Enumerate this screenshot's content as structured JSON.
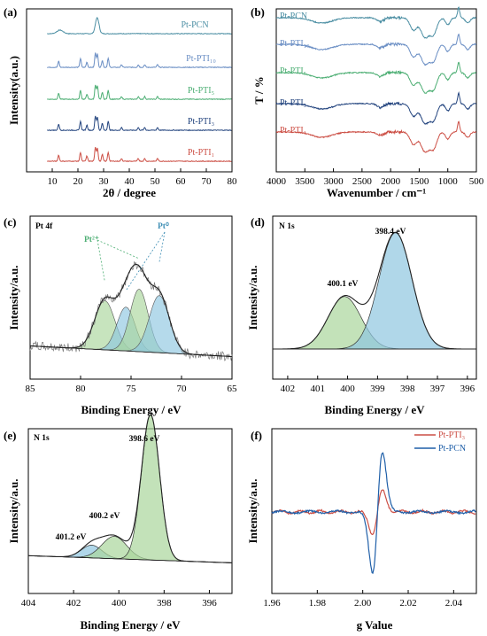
{
  "chart_data": [
    {
      "panel": "(a)",
      "type": "line",
      "xlabel": "2θ / degree",
      "ylabel": "Intensity(a.u.)",
      "xlim": [
        0,
        80
      ],
      "xticks": [
        "10",
        "20",
        "30",
        "40",
        "50",
        "60",
        "70",
        "80"
      ],
      "peaks_2theta": [
        12.5,
        21.0,
        23.5,
        26.8,
        27.6,
        29.5,
        31.8,
        37.0,
        43.5,
        46.0,
        51.0
      ],
      "series": [
        {
          "name": "Pt-PCN",
          "color": "#4b8ea3",
          "offset": 4
        },
        {
          "name": "Pt-PTI₁₀",
          "color": "#6a8ec4",
          "offset": 3
        },
        {
          "name": "Pt-PTI₅",
          "color": "#4cae73",
          "offset": 2
        },
        {
          "name": "Pt-PTI₃",
          "color": "#24457f",
          "offset": 1
        },
        {
          "name": "Pt-PTI₁",
          "color": "#cc4f45",
          "offset": 0
        }
      ]
    },
    {
      "panel": "(b)",
      "type": "line",
      "xlabel": "Wavenumber / cm⁻¹",
      "ylabel": "T / %",
      "xlim": [
        4000,
        500
      ],
      "xticks": [
        "4000",
        "3500",
        "3000",
        "2500",
        "2000",
        "1500",
        "1000",
        "500"
      ],
      "bands_cm": [
        3200,
        1600,
        1400,
        1250,
        810
      ],
      "series": [
        {
          "name": "Pt-PCN",
          "color": "#4b8ea3",
          "offset": 4
        },
        {
          "name": "Pt-PTI₁₀",
          "color": "#6a8ec4",
          "offset": 3
        },
        {
          "name": "Pt-PTI₅",
          "color": "#4cae73",
          "offset": 2
        },
        {
          "name": "Pt-PTI₃",
          "color": "#24457f",
          "offset": 1
        },
        {
          "name": "Pt-PTI₁",
          "color": "#cc4f45",
          "offset": 0
        }
      ]
    },
    {
      "panel": "(c)",
      "type": "line",
      "title": "Pt 4f",
      "xlabel": "Binding Energy / eV",
      "ylabel": "Intensity/a.u.",
      "xlim": [
        85,
        65
      ],
      "xticks": [
        "85",
        "80",
        "75",
        "70",
        "65"
      ],
      "annotations": [
        "Pt²⁺",
        "Pt⁰"
      ],
      "components": [
        {
          "center": 77.6,
          "height": 0.37,
          "width": 1.0,
          "color": "#a9d59b"
        },
        {
          "center": 75.5,
          "height": 0.33,
          "width": 0.9,
          "color": "#8ec6e0"
        },
        {
          "center": 74.2,
          "height": 0.47,
          "width": 0.9,
          "color": "#a9d59b"
        },
        {
          "center": 72.2,
          "height": 0.43,
          "width": 1.0,
          "color": "#8ec6e0"
        }
      ]
    },
    {
      "panel": "(d)",
      "type": "line",
      "title": "N 1s",
      "xlabel": "Binding Energy / eV",
      "ylabel": "Intensity/a.u.",
      "xlim": [
        402.5,
        395.7
      ],
      "xticks": [
        "402",
        "401",
        "400",
        "399",
        "398",
        "397",
        "396"
      ],
      "peaks": [
        {
          "label": "400.1 eV",
          "center": 400.1,
          "height": 0.37,
          "width": 0.55,
          "color": "#a9d59b"
        },
        {
          "label": "398.4 eV",
          "center": 398.4,
          "height": 0.82,
          "width": 0.55,
          "color": "#8ec6e0"
        }
      ]
    },
    {
      "panel": "(e)",
      "type": "line",
      "title": "N 1s",
      "xlabel": "Binding Energy / eV",
      "ylabel": "Intensity/a.u.",
      "xlim": [
        404,
        395
      ],
      "xticks": [
        "404",
        "402",
        "400",
        "398",
        "396"
      ],
      "peaks": [
        {
          "label": "401.2 eV",
          "center": 401.2,
          "height": 0.08,
          "width": 0.45,
          "color": "#8ec6e0"
        },
        {
          "label": "400.2 eV",
          "center": 400.2,
          "height": 0.14,
          "width": 0.55,
          "color": "#a9d59b"
        },
        {
          "label": "398.6 eV",
          "center": 398.6,
          "height": 0.91,
          "width": 0.4,
          "color": "#a9d59b"
        }
      ]
    },
    {
      "panel": "(f)",
      "type": "line",
      "xlabel": "g Value",
      "ylabel": "Intensity/a.u.",
      "xlim": [
        1.96,
        2.05
      ],
      "xticks": [
        "1.96",
        "1.98",
        "2.00",
        "2.02",
        "2.04"
      ],
      "legend_position": "top-right",
      "series": [
        {
          "name": "Pt-PTI₃",
          "color": "#cc4f45",
          "center": 2.0065,
          "amplitude": 0.3
        },
        {
          "name": "Pt-PCN",
          "color": "#1f5fa8",
          "center": 2.0065,
          "amplitude": 0.85
        }
      ]
    }
  ]
}
